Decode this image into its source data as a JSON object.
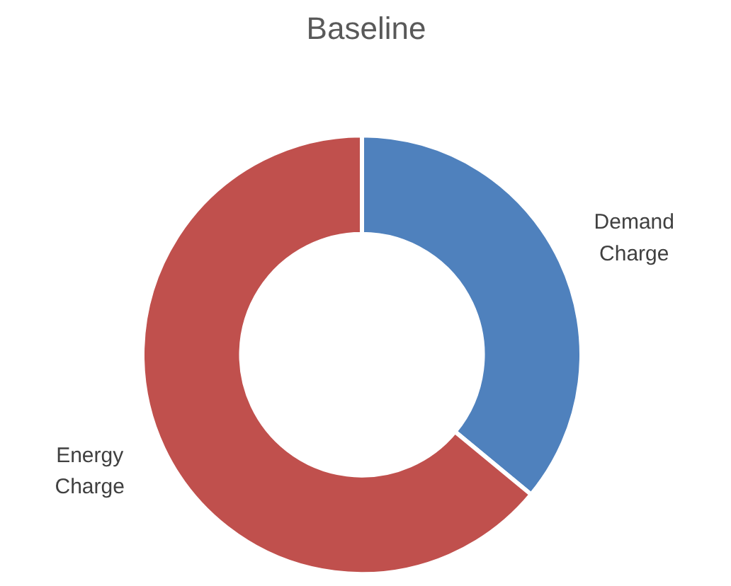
{
  "chart_data": {
    "type": "donut",
    "title": "Baseline",
    "categories": [
      "Demand\nCharge",
      "Energy\nCharge"
    ],
    "values": [
      36,
      64
    ],
    "colors": [
      "#4f81bd",
      "#c0504d"
    ]
  }
}
